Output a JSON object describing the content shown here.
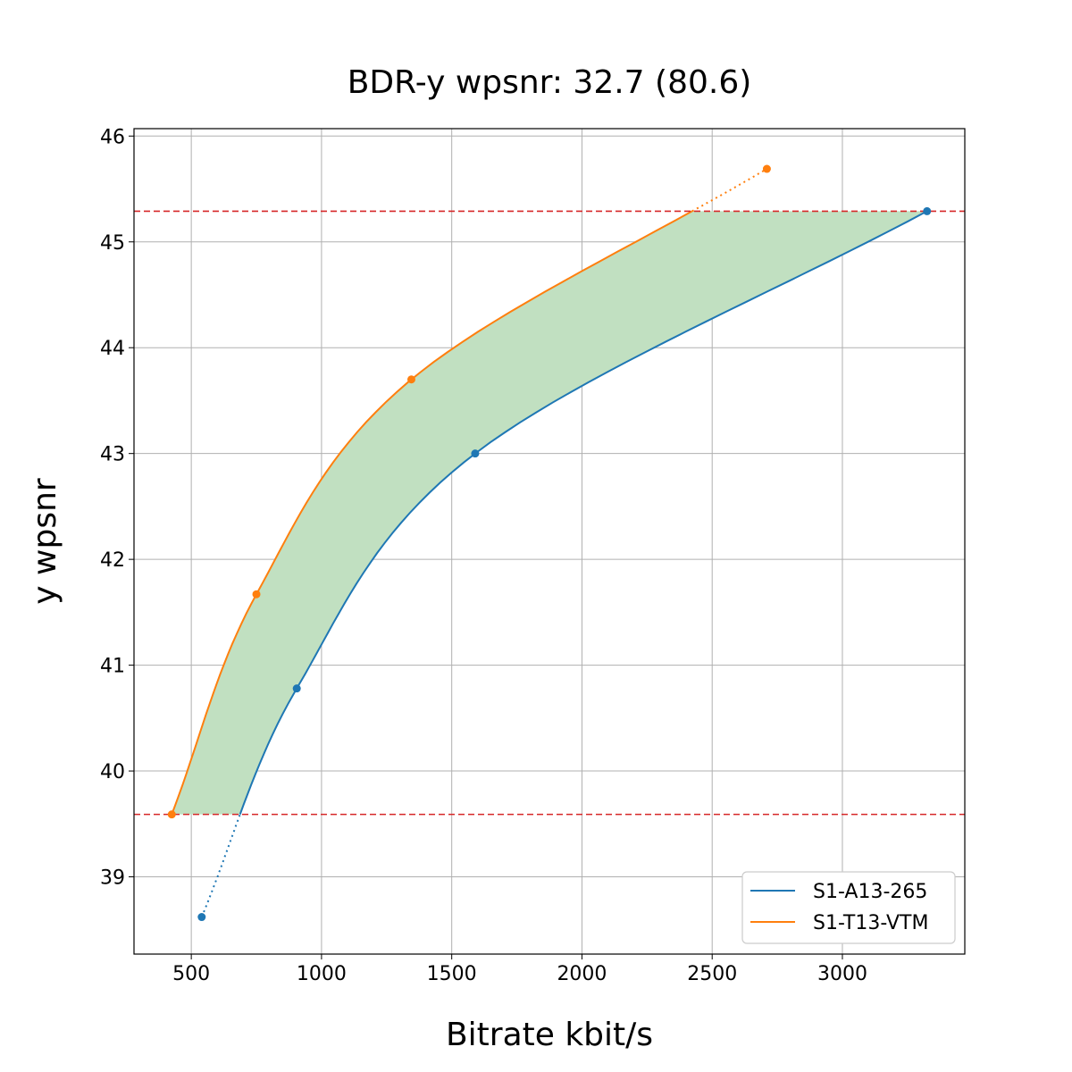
{
  "chart_data": {
    "type": "line",
    "title": "BDR-y wpsnr: 32.7 (80.6)",
    "xlabel": "Bitrate kbit/s",
    "ylabel": "y wpsnr",
    "xlim": [
      280,
      3470
    ],
    "ylim": [
      38.27,
      46.07
    ],
    "xticks": [
      500,
      1000,
      1500,
      2000,
      2500,
      3000
    ],
    "yticks": [
      39,
      40,
      41,
      42,
      43,
      44,
      45,
      46
    ],
    "grid": true,
    "legend_position": "bottom-right",
    "series": [
      {
        "name": "S1-A13-265",
        "color": "#1f77b4",
        "x": [
          540,
          905,
          1590,
          3325
        ],
        "y": [
          38.62,
          40.78,
          43.0,
          45.29
        ]
      },
      {
        "name": "S1-T13-VTM",
        "color": "#ff7f0e",
        "x": [
          425,
          750,
          1345,
          2710
        ],
        "y": [
          39.59,
          41.67,
          43.7,
          45.69
        ]
      }
    ],
    "reference_lines": [
      {
        "y": 45.29,
        "color": "#d62728",
        "style": "dashed"
      },
      {
        "y": 39.59,
        "color": "#d62728",
        "style": "dashed"
      }
    ],
    "fill_color": "#c1e0c1"
  }
}
